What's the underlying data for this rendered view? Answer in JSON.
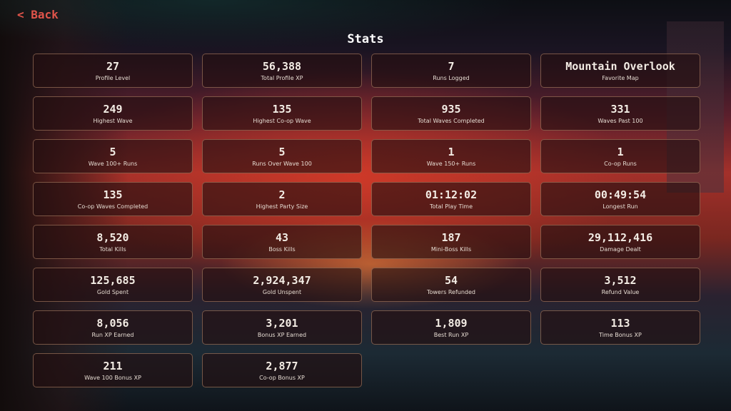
{
  "nav": {
    "back_label": "< Back"
  },
  "title": "Stats",
  "stats": [
    {
      "value": "27",
      "label": "Profile Level"
    },
    {
      "value": "56,388",
      "label": "Total Profile XP"
    },
    {
      "value": "7",
      "label": "Runs Logged"
    },
    {
      "value": "Mountain Overlook",
      "label": "Favorite Map"
    },
    {
      "value": "249",
      "label": "Highest Wave"
    },
    {
      "value": "135",
      "label": "Highest Co-op Wave"
    },
    {
      "value": "935",
      "label": "Total Waves Completed"
    },
    {
      "value": "331",
      "label": "Waves Past 100"
    },
    {
      "value": "5",
      "label": "Wave 100+ Runs"
    },
    {
      "value": "5",
      "label": "Runs Over Wave 100"
    },
    {
      "value": "1",
      "label": "Wave 150+ Runs"
    },
    {
      "value": "1",
      "label": "Co-op Runs"
    },
    {
      "value": "135",
      "label": "Co-op Waves Completed"
    },
    {
      "value": "2",
      "label": "Highest Party Size"
    },
    {
      "value": "01:12:02",
      "label": "Total Play Time"
    },
    {
      "value": "00:49:54",
      "label": "Longest Run"
    },
    {
      "value": "8,520",
      "label": "Total Kills"
    },
    {
      "value": "43",
      "label": "Boss Kills"
    },
    {
      "value": "187",
      "label": "Mini-Boss Kills"
    },
    {
      "value": "29,112,416",
      "label": "Damage Dealt"
    },
    {
      "value": "125,685",
      "label": "Gold Spent"
    },
    {
      "value": "2,924,347",
      "label": "Gold Unspent"
    },
    {
      "value": "54",
      "label": "Towers Refunded"
    },
    {
      "value": "3,512",
      "label": "Refund Value"
    },
    {
      "value": "8,056",
      "label": "Run XP Earned"
    },
    {
      "value": "3,201",
      "label": "Bonus XP Earned"
    },
    {
      "value": "1,809",
      "label": "Best Run XP"
    },
    {
      "value": "113",
      "label": "Time Bonus XP"
    },
    {
      "value": "211",
      "label": "Wave 100 Bonus XP"
    },
    {
      "value": "2,877",
      "label": "Co-op Bonus XP"
    }
  ]
}
